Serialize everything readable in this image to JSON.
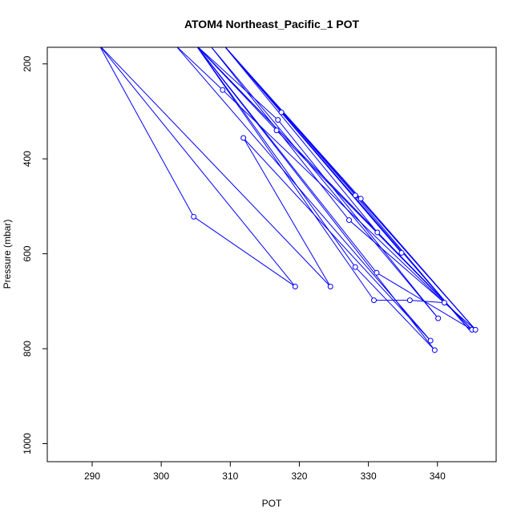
{
  "chart_data": {
    "type": "line",
    "title": "ATOM4 Northeast_Pacific_1 POT",
    "xlabel": "POT",
    "ylabel": "Pressure (mbar)",
    "xlim": [
      283.5,
      348.5
    ],
    "ylim": [
      1038,
      165
    ],
    "x_ticks": [
      290,
      300,
      310,
      320,
      330,
      340
    ],
    "y_ticks": [
      200,
      400,
      600,
      800,
      1000
    ],
    "grid": false,
    "legend": "none",
    "series_color": "#0000ff",
    "points": [
      {
        "x": 291.0,
        "y": 160
      },
      {
        "x": 304.7,
        "y": 522
      },
      {
        "x": 319.4,
        "y": 669
      },
      {
        "x": 291.0,
        "y": 160
      },
      {
        "x": 324.5,
        "y": 669
      },
      {
        "x": 311.9,
        "y": 356
      },
      {
        "x": 339.0,
        "y": 783
      },
      {
        "x": 302.0,
        "y": 160
      },
      {
        "x": 308.9,
        "y": 255
      },
      {
        "x": 341.0,
        "y": 703
      },
      {
        "x": 336.0,
        "y": 698
      },
      {
        "x": 330.8,
        "y": 698
      },
      {
        "x": 305.0,
        "y": 160
      },
      {
        "x": 316.7,
        "y": 340
      },
      {
        "x": 345.0,
        "y": 760
      },
      {
        "x": 305.0,
        "y": 160
      },
      {
        "x": 316.9,
        "y": 318
      },
      {
        "x": 340.1,
        "y": 736
      },
      {
        "x": 307.0,
        "y": 160
      },
      {
        "x": 327.2,
        "y": 529
      },
      {
        "x": 345.5,
        "y": 760
      },
      {
        "x": 309.0,
        "y": 160
      },
      {
        "x": 328.1,
        "y": 477
      },
      {
        "x": 344.6,
        "y": 760
      },
      {
        "x": 309.0,
        "y": 160
      },
      {
        "x": 317.4,
        "y": 302
      },
      {
        "x": 334.8,
        "y": 598
      },
      {
        "x": 309.0,
        "y": 160
      },
      {
        "x": 328.9,
        "y": 484
      },
      {
        "x": 345.5,
        "y": 760
      },
      {
        "x": 309.0,
        "y": 160
      },
      {
        "x": 331.3,
        "y": 555
      },
      {
        "x": 345.0,
        "y": 760
      },
      {
        "x": 305.0,
        "y": 160
      },
      {
        "x": 328.1,
        "y": 628
      },
      {
        "x": 339.6,
        "y": 803
      },
      {
        "x": 305.0,
        "y": 160
      },
      {
        "x": 331.2,
        "y": 640
      },
      {
        "x": 345.0,
        "y": 760
      }
    ],
    "markers": [
      {
        "x": 304.7,
        "y": 522
      },
      {
        "x": 319.4,
        "y": 669
      },
      {
        "x": 324.5,
        "y": 669
      },
      {
        "x": 311.9,
        "y": 356
      },
      {
        "x": 339.0,
        "y": 783
      },
      {
        "x": 308.9,
        "y": 255
      },
      {
        "x": 341.0,
        "y": 703
      },
      {
        "x": 336.0,
        "y": 698
      },
      {
        "x": 330.8,
        "y": 698
      },
      {
        "x": 316.7,
        "y": 340
      },
      {
        "x": 345.0,
        "y": 760
      },
      {
        "x": 316.9,
        "y": 318
      },
      {
        "x": 340.1,
        "y": 736
      },
      {
        "x": 327.2,
        "y": 529
      },
      {
        "x": 345.5,
        "y": 760
      },
      {
        "x": 328.1,
        "y": 477
      },
      {
        "x": 317.4,
        "y": 302
      },
      {
        "x": 334.8,
        "y": 598
      },
      {
        "x": 328.9,
        "y": 484
      },
      {
        "x": 331.3,
        "y": 555
      },
      {
        "x": 328.1,
        "y": 628
      },
      {
        "x": 339.6,
        "y": 803
      },
      {
        "x": 331.2,
        "y": 640
      }
    ]
  }
}
